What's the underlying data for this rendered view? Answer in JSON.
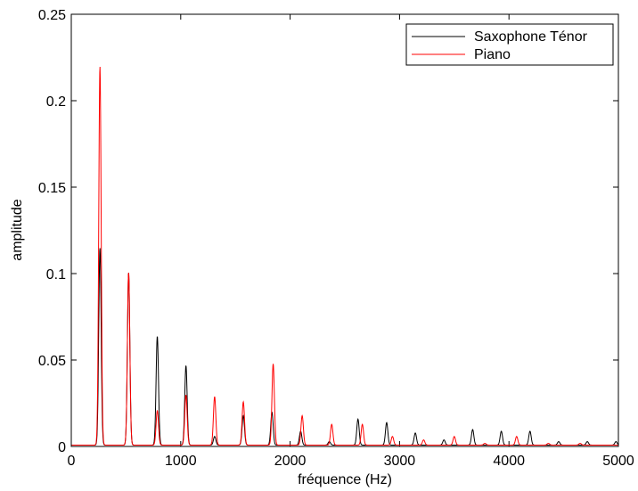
{
  "chart_data": {
    "type": "line",
    "xlabel": "fréquence (Hz)",
    "ylabel": "amplitude",
    "xlim": [
      0,
      5000
    ],
    "ylim": [
      0,
      0.25
    ],
    "xticks": [
      "0",
      "1000",
      "2000",
      "3000",
      "4000",
      "5000"
    ],
    "yticks": [
      "0",
      "0.05",
      "0.1",
      "0.15",
      "0.2",
      "0.25"
    ],
    "xtick_values": [
      0,
      1000,
      2000,
      3000,
      4000,
      5000
    ],
    "ytick_values": [
      0,
      0.05,
      0.1,
      0.15,
      0.2,
      0.25
    ],
    "grid": false,
    "legend_position": "top-right",
    "series": [
      {
        "name": "Saxophone Ténor",
        "color": "#000000",
        "peaks": [
          [
            262,
            0.114
          ],
          [
            524,
            0.1
          ],
          [
            786,
            0.063
          ],
          [
            1048,
            0.046
          ],
          [
            1310,
            0.005
          ],
          [
            1572,
            0.017
          ],
          [
            1834,
            0.019
          ],
          [
            2096,
            0.008
          ],
          [
            2358,
            0.002
          ],
          [
            2620,
            0.015
          ],
          [
            2882,
            0.013
          ],
          [
            3144,
            0.007
          ],
          [
            3406,
            0.003
          ],
          [
            3668,
            0.009
          ],
          [
            3930,
            0.008
          ],
          [
            4192,
            0.008
          ],
          [
            4454,
            0.002
          ],
          [
            4716,
            0.002
          ],
          [
            4978,
            0.002
          ]
        ]
      },
      {
        "name": "Piano",
        "color": "#ff0000",
        "peaks": [
          [
            262,
            0.219
          ],
          [
            524,
            0.1
          ],
          [
            786,
            0.02
          ],
          [
            1048,
            0.029
          ],
          [
            1310,
            0.028
          ],
          [
            1572,
            0.025
          ],
          [
            1845,
            0.047
          ],
          [
            2110,
            0.017
          ],
          [
            2380,
            0.012
          ],
          [
            2660,
            0.012
          ],
          [
            2935,
            0.005
          ],
          [
            3220,
            0.003
          ],
          [
            3500,
            0.005
          ],
          [
            3780,
            0.001
          ],
          [
            4070,
            0.005
          ],
          [
            4360,
            0.001
          ],
          [
            4650,
            0.001
          ]
        ]
      }
    ]
  }
}
